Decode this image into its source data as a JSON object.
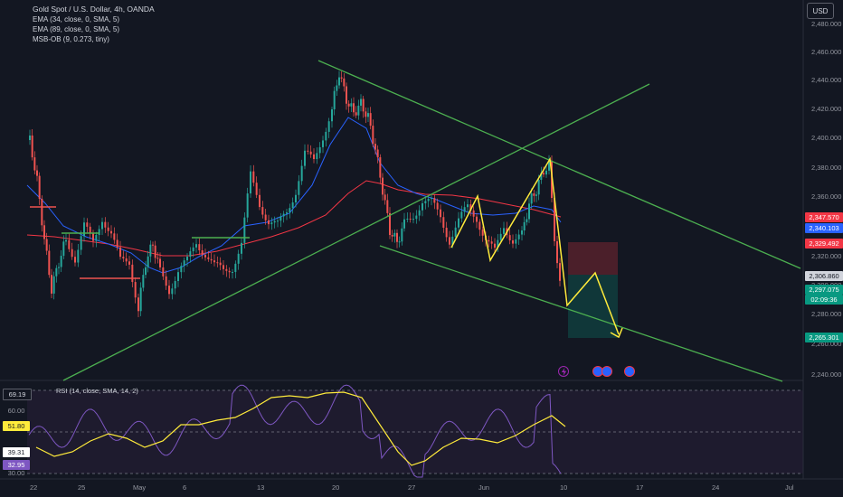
{
  "legend": {
    "title": "Gold Spot / U.S. Dollar, 4h, OANDA",
    "ema1": "EMA (34, close, 0, SMA, 5)",
    "ema2": "EMA (89, close, 0, SMA, 5)",
    "msb": "MSB-OB (9, 0.273, tiny)"
  },
  "currency": "USD",
  "price_axis": [
    "2,480.000",
    "2,460.000",
    "2,440.000",
    "2,420.000",
    "2,400.000",
    "2,380.000",
    "2,360.000",
    "2,320.000",
    "2,300.000",
    "2,280.000",
    "2,260.000",
    "2,240.000"
  ],
  "price_tags": {
    "t1": "2,347.570",
    "t2": "2,340.103",
    "t3": "2,329.492",
    "t4": "2,306.860",
    "t5": "2,297.075",
    "t5_timer": "02:09:36",
    "t6": "2,265.301"
  },
  "time_axis": [
    "22",
    "25",
    "May",
    "6",
    "13",
    "20",
    "27",
    "Jun",
    "10",
    "17",
    "24",
    "Jul"
  ],
  "rsi": {
    "label": "RSI (14, close, SMA, 14, 2)",
    "left_labels": [
      "69.19",
      "60.00",
      "51.80",
      "39.31",
      "32.95",
      "30.00"
    ]
  },
  "colors": {
    "up": "#26a69a",
    "down": "#ef5350",
    "trend": "#4caf50",
    "zigzag": "#ffeb3b",
    "ema34": "#2962ff",
    "ema89": "#f23645",
    "rsi_line": "#7e57c2",
    "rsi_ma": "#ffeb3b"
  },
  "event_icons": [
    "lightning-icon",
    "us-flag-icon",
    "us-flag-icon",
    "us-flag-icon"
  ]
}
